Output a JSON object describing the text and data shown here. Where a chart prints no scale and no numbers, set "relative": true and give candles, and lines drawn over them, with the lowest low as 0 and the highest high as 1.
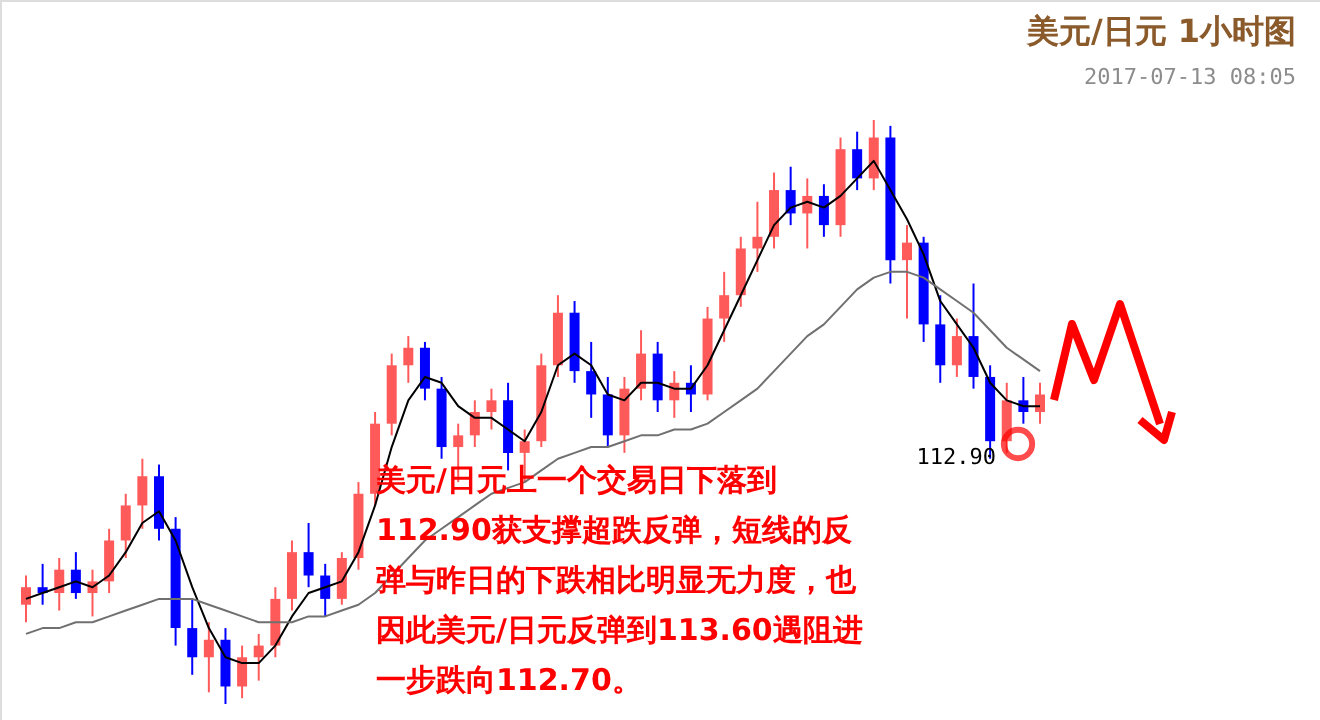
{
  "chart_data": {
    "type": "candlestick",
    "title": "美元/日元 1小时图",
    "subtitle": "2017-07-13 08:05",
    "relative": true,
    "categories": [
      null,
      null,
      null,
      null,
      null,
      null,
      null,
      null,
      null,
      null,
      null,
      null,
      null,
      null,
      null,
      null,
      null,
      null,
      null,
      null,
      null,
      null,
      null,
      null,
      null,
      null,
      null,
      null,
      null,
      null,
      null,
      null,
      null,
      null,
      null,
      null,
      null,
      null,
      null,
      null,
      null,
      null,
      null,
      null,
      null,
      null,
      null,
      null,
      null,
      null,
      null,
      null,
      null,
      null,
      null,
      null,
      null,
      null,
      null,
      null,
      null,
      null
    ],
    "ohlc": [
      [
        0.17,
        0.22,
        0.14,
        0.2
      ],
      [
        0.2,
        0.24,
        0.17,
        0.19
      ],
      [
        0.19,
        0.25,
        0.16,
        0.23
      ],
      [
        0.23,
        0.26,
        0.18,
        0.19
      ],
      [
        0.19,
        0.23,
        0.15,
        0.21
      ],
      [
        0.21,
        0.3,
        0.19,
        0.28
      ],
      [
        0.28,
        0.36,
        0.25,
        0.34
      ],
      [
        0.34,
        0.42,
        0.3,
        0.39
      ],
      [
        0.39,
        0.41,
        0.28,
        0.3
      ],
      [
        0.3,
        0.32,
        0.1,
        0.13
      ],
      [
        0.13,
        0.18,
        0.05,
        0.08
      ],
      [
        0.08,
        0.14,
        0.02,
        0.11
      ],
      [
        0.11,
        0.13,
        0.0,
        0.03
      ],
      [
        0.03,
        0.1,
        0.01,
        0.08
      ],
      [
        0.08,
        0.12,
        0.04,
        0.1
      ],
      [
        0.1,
        0.2,
        0.08,
        0.18
      ],
      [
        0.18,
        0.28,
        0.16,
        0.26
      ],
      [
        0.26,
        0.31,
        0.2,
        0.22
      ],
      [
        0.22,
        0.24,
        0.15,
        0.18
      ],
      [
        0.18,
        0.26,
        0.17,
        0.25
      ],
      [
        0.25,
        0.38,
        0.23,
        0.36
      ],
      [
        0.36,
        0.5,
        0.34,
        0.48
      ],
      [
        0.48,
        0.6,
        0.46,
        0.58
      ],
      [
        0.58,
        0.63,
        0.55,
        0.61
      ],
      [
        0.61,
        0.62,
        0.52,
        0.54
      ],
      [
        0.54,
        0.56,
        0.42,
        0.44
      ],
      [
        0.44,
        0.48,
        0.38,
        0.46
      ],
      [
        0.46,
        0.52,
        0.44,
        0.5
      ],
      [
        0.5,
        0.54,
        0.47,
        0.52
      ],
      [
        0.52,
        0.55,
        0.4,
        0.43
      ],
      [
        0.43,
        0.47,
        0.38,
        0.45
      ],
      [
        0.45,
        0.6,
        0.44,
        0.58
      ],
      [
        0.58,
        0.7,
        0.56,
        0.67
      ],
      [
        0.67,
        0.69,
        0.55,
        0.57
      ],
      [
        0.57,
        0.62,
        0.49,
        0.53
      ],
      [
        0.53,
        0.56,
        0.44,
        0.46
      ],
      [
        0.46,
        0.56,
        0.43,
        0.54
      ],
      [
        0.54,
        0.64,
        0.52,
        0.6
      ],
      [
        0.6,
        0.62,
        0.5,
        0.52
      ],
      [
        0.52,
        0.57,
        0.49,
        0.55
      ],
      [
        0.55,
        0.58,
        0.5,
        0.53
      ],
      [
        0.53,
        0.68,
        0.52,
        0.66
      ],
      [
        0.66,
        0.74,
        0.62,
        0.7
      ],
      [
        0.7,
        0.8,
        0.68,
        0.78
      ],
      [
        0.78,
        0.86,
        0.74,
        0.8
      ],
      [
        0.8,
        0.91,
        0.78,
        0.88
      ],
      [
        0.88,
        0.92,
        0.82,
        0.84
      ],
      [
        0.84,
        0.9,
        0.78,
        0.87
      ],
      [
        0.87,
        0.89,
        0.8,
        0.82
      ],
      [
        0.82,
        0.97,
        0.8,
        0.95
      ],
      [
        0.95,
        0.98,
        0.88,
        0.9
      ],
      [
        0.9,
        1.0,
        0.88,
        0.97
      ],
      [
        0.97,
        0.99,
        0.72,
        0.76
      ],
      [
        0.76,
        0.82,
        0.66,
        0.79
      ],
      [
        0.79,
        0.8,
        0.62,
        0.65
      ],
      [
        0.65,
        0.7,
        0.55,
        0.58
      ],
      [
        0.58,
        0.66,
        0.56,
        0.63
      ],
      [
        0.63,
        0.72,
        0.54,
        0.56
      ],
      [
        0.56,
        0.58,
        0.42,
        0.45
      ],
      [
        0.45,
        0.55,
        0.43,
        0.52
      ],
      [
        0.52,
        0.56,
        0.48,
        0.5
      ],
      [
        0.5,
        0.55,
        0.48,
        0.53
      ]
    ],
    "colors": [
      "#ff5a5a",
      "#0000ff",
      "#ff5a5a",
      "#0000ff",
      "#ff5a5a",
      "#ff5a5a",
      "#ff5a5a",
      "#ff5a5a",
      "#0000ff",
      "#0000ff",
      "#0000ff",
      "#ff5a5a",
      "#0000ff",
      "#ff5a5a",
      "#ff5a5a",
      "#ff5a5a",
      "#ff5a5a",
      "#0000ff",
      "#0000ff",
      "#ff5a5a",
      "#ff5a5a",
      "#ff5a5a",
      "#ff5a5a",
      "#ff5a5a",
      "#0000ff",
      "#0000ff",
      "#ff5a5a",
      "#ff5a5a",
      "#ff5a5a",
      "#0000ff",
      "#ff5a5a",
      "#ff5a5a",
      "#ff5a5a",
      "#0000ff",
      "#0000ff",
      "#0000ff",
      "#ff5a5a",
      "#ff5a5a",
      "#0000ff",
      "#ff5a5a",
      "#0000ff",
      "#ff5a5a",
      "#ff5a5a",
      "#ff5a5a",
      "#ff5a5a",
      "#ff5a5a",
      "#0000ff",
      "#ff5a5a",
      "#0000ff",
      "#ff5a5a",
      "#0000ff",
      "#ff5a5a",
      "#0000ff",
      "#ff5a5a",
      "#0000ff",
      "#0000ff",
      "#ff5a5a",
      "#0000ff",
      "#0000ff",
      "#ff5a5a",
      "#0000ff",
      "#ff5a5a"
    ],
    "series": [
      {
        "type": "line",
        "color": "#000000",
        "values": [
          0.18,
          0.19,
          0.2,
          0.21,
          0.2,
          0.22,
          0.26,
          0.31,
          0.33,
          0.28,
          0.2,
          0.13,
          0.08,
          0.07,
          0.07,
          0.1,
          0.15,
          0.19,
          0.2,
          0.21,
          0.26,
          0.34,
          0.44,
          0.52,
          0.56,
          0.55,
          0.51,
          0.49,
          0.49,
          0.47,
          0.45,
          0.5,
          0.58,
          0.6,
          0.58,
          0.53,
          0.52,
          0.55,
          0.55,
          0.54,
          0.54,
          0.58,
          0.64,
          0.7,
          0.76,
          0.82,
          0.85,
          0.86,
          0.85,
          0.87,
          0.9,
          0.93,
          0.88,
          0.83,
          0.77,
          0.69,
          0.65,
          0.61,
          0.55,
          0.52,
          0.51,
          0.51
        ]
      },
      {
        "type": "line",
        "color": "#707070",
        "values": [
          0.12,
          0.13,
          0.13,
          0.14,
          0.14,
          0.15,
          0.16,
          0.17,
          0.18,
          0.18,
          0.18,
          0.17,
          0.16,
          0.15,
          0.14,
          0.14,
          0.14,
          0.15,
          0.15,
          0.16,
          0.17,
          0.19,
          0.22,
          0.25,
          0.28,
          0.3,
          0.32,
          0.34,
          0.36,
          0.37,
          0.38,
          0.4,
          0.42,
          0.43,
          0.44,
          0.44,
          0.45,
          0.46,
          0.46,
          0.47,
          0.47,
          0.48,
          0.5,
          0.52,
          0.54,
          0.57,
          0.6,
          0.63,
          0.65,
          0.68,
          0.71,
          0.73,
          0.74,
          0.74,
          0.73,
          0.71,
          0.69,
          0.67,
          0.64,
          0.61,
          0.59,
          0.57
        ]
      }
    ],
    "annotations": [
      "美元/日元上一个交易日下落到112.90获支撑超跌反弹，短线的反弹与昨日的下跌相比明显无力度，也因此美元/日元反弹到113.60遇阻进一步跌向112.70。",
      "112.90"
    ]
  }
}
